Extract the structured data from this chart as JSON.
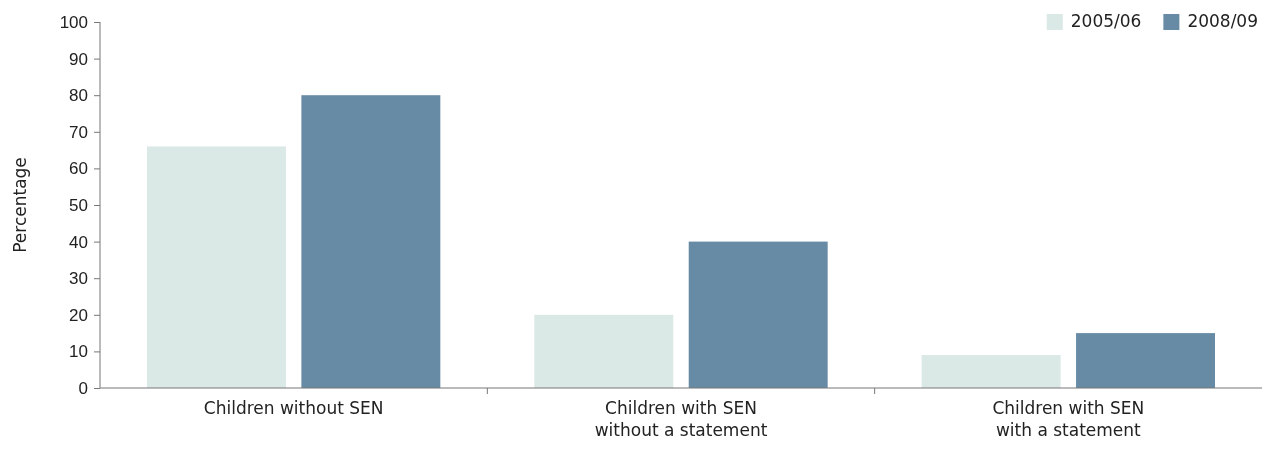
{
  "chart_data": {
    "type": "bar",
    "ylabel": "Percentage",
    "categories": [
      "Children without SEN",
      "Children with SEN without a statement",
      "Children with SEN with a statement"
    ],
    "series": [
      {
        "name": "2005/06",
        "color": "#dae8e6",
        "values": [
          66,
          20,
          9
        ]
      },
      {
        "name": "2008/09",
        "color": "#678ba5",
        "values": [
          80,
          40,
          15
        ]
      }
    ],
    "ylim": [
      0,
      100
    ],
    "yticks": [
      0,
      10,
      20,
      30,
      40,
      50,
      60,
      70,
      80,
      90,
      100
    ],
    "grid": false,
    "legend": "top right"
  }
}
